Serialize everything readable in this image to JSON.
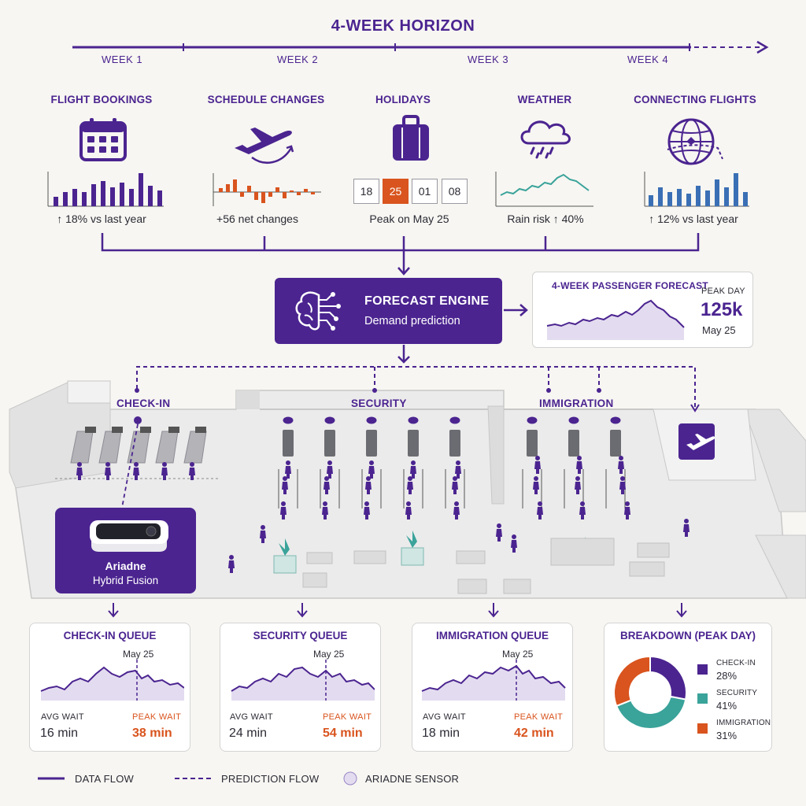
{
  "horizon": {
    "title": "4-WEEK HORIZON",
    "weeks": [
      "WEEK 1",
      "WEEK 2",
      "WEEK 3",
      "WEEK 4"
    ]
  },
  "factors": [
    {
      "title": "FLIGHT BOOKINGS",
      "caption": "↑ 18% vs last year",
      "icon": "calendar-icon"
    },
    {
      "title": "SCHEDULE CHANGES",
      "caption": "+56 net changes",
      "icon": "airplane-icon"
    },
    {
      "title": "HOLIDAYS",
      "caption": "Peak on May 25",
      "icon": "suitcase-icon"
    },
    {
      "title": "WEATHER",
      "caption": "Rain risk ↑ 40%",
      "icon": "rain-cloud-icon"
    },
    {
      "title": "CONNECTING FLIGHTS",
      "caption": "↑ 12% vs last year",
      "icon": "globe-icon"
    }
  ],
  "holiday_dates": [
    "18",
    "25",
    "01",
    "08"
  ],
  "engine": {
    "title": "FORECAST ENGINE",
    "subtitle": "Demand prediction",
    "icon": "brain-circuit-icon"
  },
  "forecast": {
    "title": "4-WEEK PASSENGER FORECAST",
    "peak_label": "PEAK DAY",
    "peak_value": "125k",
    "peak_date": "May 25"
  },
  "zones": {
    "checkin": "CHECK-IN",
    "security": "SECURITY",
    "immigration": "IMMIGRATION"
  },
  "sensor": {
    "name": "Ariadne",
    "subtitle": "Hybrid Fusion"
  },
  "queues": [
    {
      "title": "CHECK-IN QUEUE",
      "marker": "May 25",
      "avg_label": "AVG WAIT",
      "avg_value": "16 min",
      "peak_label": "PEAK WAIT",
      "peak_value": "38 min"
    },
    {
      "title": "SECURITY QUEUE",
      "marker": "May 25",
      "avg_label": "AVG WAIT",
      "avg_value": "24 min",
      "peak_label": "PEAK WAIT",
      "peak_value": "54 min"
    },
    {
      "title": "IMMIGRATION QUEUE",
      "marker": "May 25",
      "avg_label": "AVG WAIT",
      "avg_value": "18 min",
      "peak_label": "PEAK WAIT",
      "peak_value": "42 min"
    }
  ],
  "breakdown": {
    "title": "BREAKDOWN (PEAK DAY)",
    "items": [
      {
        "label": "CHECK-IN",
        "value": "28%",
        "share": 28,
        "color": "#4b2490"
      },
      {
        "label": "SECURITY",
        "value": "41%",
        "share": 41,
        "color": "#3aa39a"
      },
      {
        "label": "IMMIGRATION",
        "value": "31%",
        "share": 31,
        "color": "#d9541e"
      }
    ]
  },
  "legend": {
    "data_flow": "DATA FLOW",
    "prediction_flow": "PREDICTION FLOW",
    "sensor": "ARIADNE SENSOR"
  },
  "colors": {
    "primary": "#4b2490",
    "accent": "#d9541e",
    "teal": "#3aa39a",
    "blue": "#3a6fb5"
  }
}
